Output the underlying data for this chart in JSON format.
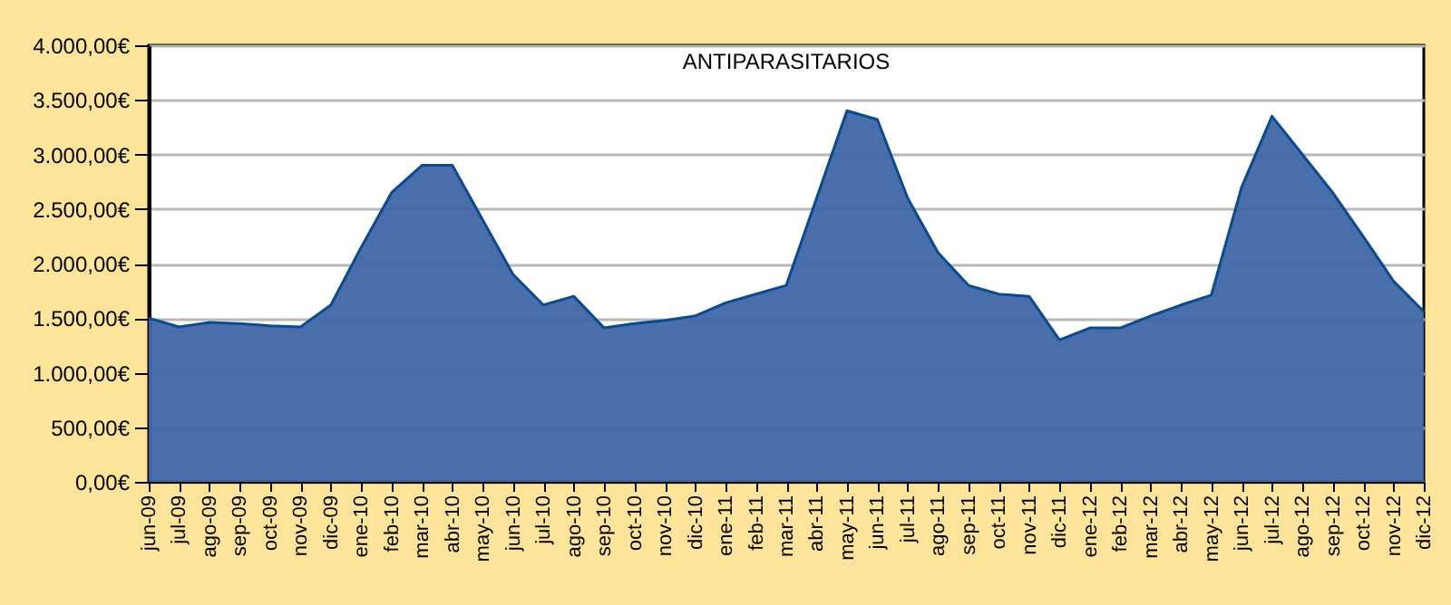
{
  "chart_data": {
    "type": "area",
    "title": "ANTIPARASITARIOS",
    "categories": [
      "jun-09",
      "jul-09",
      "ago-09",
      "sep-09",
      "oct-09",
      "nov-09",
      "dic-09",
      "ene-10",
      "feb-10",
      "mar-10",
      "abr-10",
      "may-10",
      "jun-10",
      "jul-10",
      "ago-10",
      "sep-10",
      "oct-10",
      "nov-10",
      "dic-10",
      "ene-11",
      "feb-11",
      "mar-11",
      "abr-11",
      "may-11",
      "jun-11",
      "jul-11",
      "ago-11",
      "sep-11",
      "oct-11",
      "nov-11",
      "dic-11",
      "ene-12",
      "feb-12",
      "mar-12",
      "abr-12",
      "may-12",
      "jun-12",
      "jul-12",
      "ago-12",
      "sep-12",
      "oct-12",
      "nov-12",
      "dic-12"
    ],
    "series": [
      {
        "color": "#3f66a6",
        "values": [
          1500,
          1420,
          1460,
          1450,
          1430,
          1420,
          1620,
          2150,
          2650,
          2900,
          2900,
          2400,
          1900,
          1620,
          1700,
          1410,
          1450,
          1480,
          1520,
          1640,
          1720,
          1800,
          2600,
          3400,
          3320,
          2600,
          2100,
          1800,
          1720,
          1700,
          1300,
          1410,
          1410,
          1520,
          1620,
          1710,
          2700,
          3350,
          3000,
          2650,
          2250,
          1840,
          1560
        ]
      }
    ],
    "ylim": [
      0,
      4000
    ],
    "yticks": [
      {
        "value": 0,
        "label": "0,00€"
      },
      {
        "value": 500,
        "label": "500,00€"
      },
      {
        "value": 1000,
        "label": "1.000,00€"
      },
      {
        "value": 1500,
        "label": "1.500,00€"
      },
      {
        "value": 2000,
        "label": "2.000,00€"
      },
      {
        "value": 2500,
        "label": "2.500,00€"
      },
      {
        "value": 3000,
        "label": "3.000,00€"
      },
      {
        "value": 3500,
        "label": "3.500,00€"
      },
      {
        "value": 4000,
        "label": "4.000,00€"
      }
    ],
    "grid": "y"
  }
}
